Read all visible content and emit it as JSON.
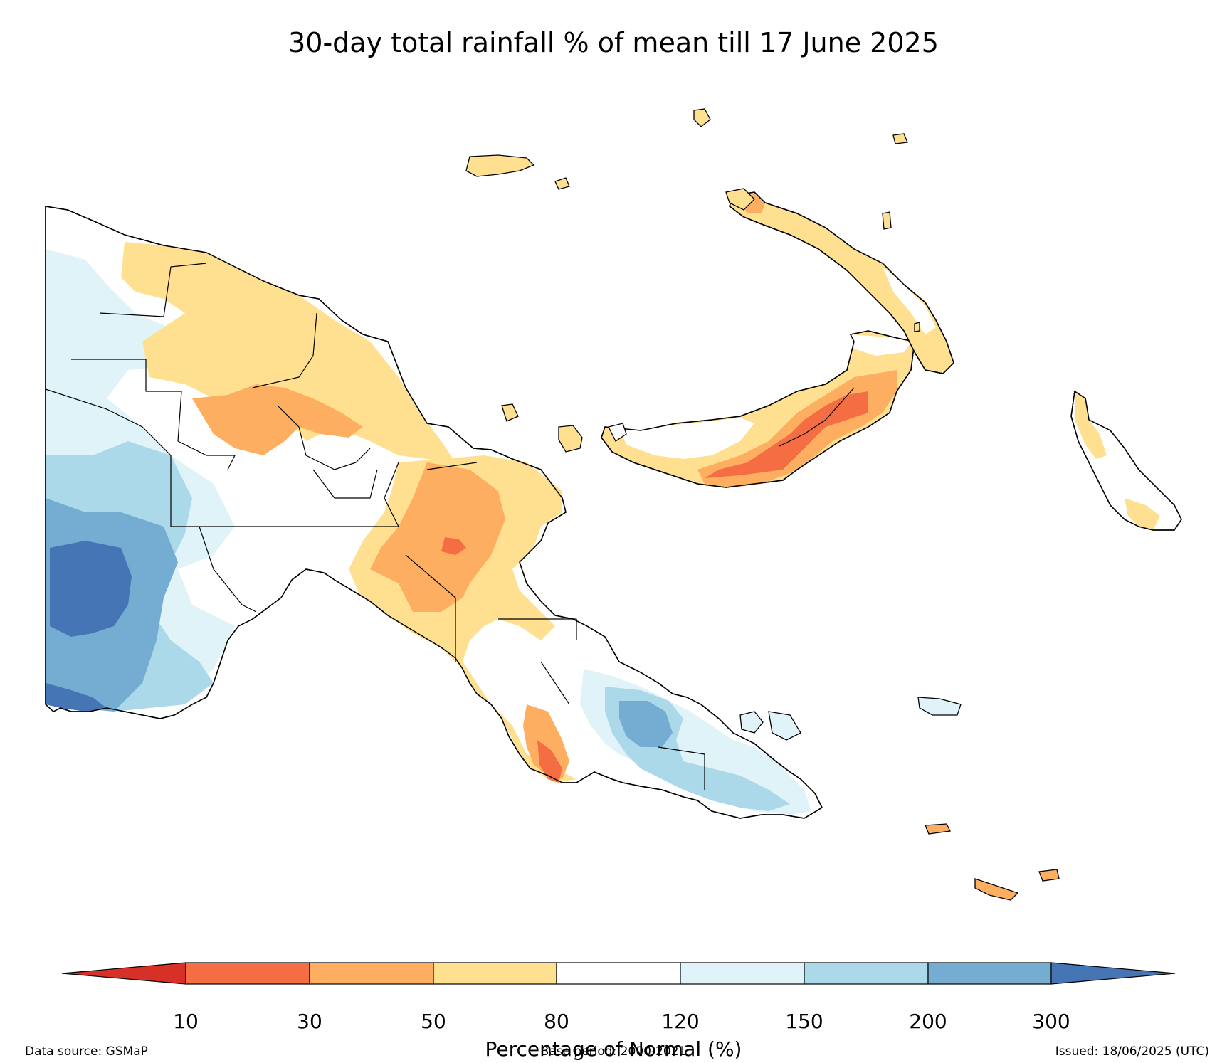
{
  "title": "30-day total rainfall % of mean till 17 June 2025",
  "colorbar": {
    "ticks": [
      "10",
      "30",
      "50",
      "80",
      "120",
      "150",
      "200",
      "300"
    ],
    "label": "Percentage of Normal (%)",
    "under_color": "#d73027",
    "over_color": "#4575b4",
    "bins": [
      {
        "range": "10-30",
        "color": "#f46d43"
      },
      {
        "range": "30-50",
        "color": "#fdae61"
      },
      {
        "range": "50-80",
        "color": "#fee090"
      },
      {
        "range": "80-120",
        "color": "#ffffff"
      },
      {
        "range": "120-150",
        "color": "#e0f3f8"
      },
      {
        "range": "150-200",
        "color": "#abd9e9"
      },
      {
        "range": "200-300",
        "color": "#74add1"
      }
    ]
  },
  "footer": {
    "source": "Data source: GSMaP",
    "base_period": "Base period: 2000-2021",
    "issued": "Issued: 18/06/2025 (UTC)"
  }
}
